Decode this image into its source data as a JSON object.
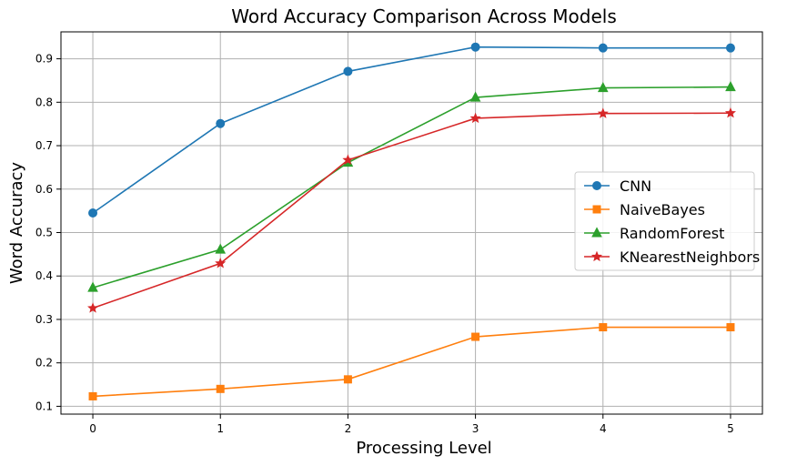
{
  "chart_data": {
    "type": "line",
    "title": "Word Accuracy Comparison Across Models",
    "xlabel": "Processing Level",
    "ylabel": "Word Accuracy",
    "x": [
      0,
      1,
      2,
      3,
      4,
      5
    ],
    "xticks": [
      "0",
      "1",
      "2",
      "3",
      "4",
      "5"
    ],
    "yticks": [
      "0.1",
      "0.2",
      "0.3",
      "0.4",
      "0.5",
      "0.6",
      "0.7",
      "0.8",
      "0.9"
    ],
    "xlim": [
      -0.25,
      5.25
    ],
    "ylim": [
      0.082,
      0.962
    ],
    "grid": true,
    "legend_position": "center-right",
    "series": [
      {
        "name": "CNN",
        "color": "#1f77b4",
        "marker": "circle",
        "values": [
          0.545,
          0.751,
          0.871,
          0.927,
          0.925,
          0.925
        ]
      },
      {
        "name": "NaiveBayes",
        "color": "#ff7f0e",
        "marker": "square",
        "values": [
          0.123,
          0.14,
          0.162,
          0.26,
          0.282,
          0.282
        ]
      },
      {
        "name": "RandomForest",
        "color": "#2ca02c",
        "marker": "triangle",
        "values": [
          0.373,
          0.461,
          0.661,
          0.811,
          0.833,
          0.835
        ]
      },
      {
        "name": "KNearestNeighbors",
        "color": "#d62728",
        "marker": "star",
        "values": [
          0.326,
          0.429,
          0.667,
          0.763,
          0.774,
          0.775
        ]
      }
    ]
  }
}
